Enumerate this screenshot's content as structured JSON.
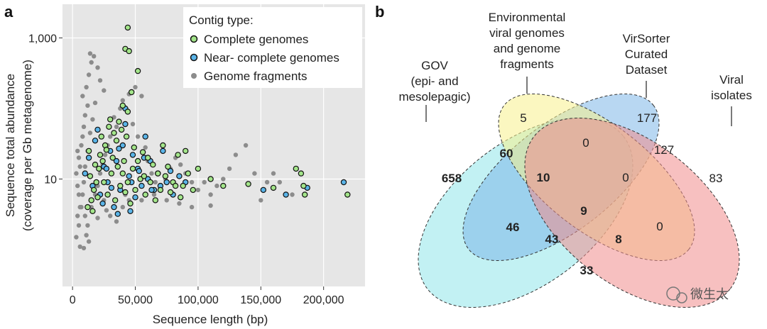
{
  "panels": {
    "a": {
      "letter": "a",
      "legend": {
        "title": "Contig type:",
        "items": [
          {
            "label": "Complete genomes",
            "color": "#a3e58a"
          },
          {
            "label": "Near- complete genomes",
            "color": "#5ab4e8"
          },
          {
            "label": "Genome fragments",
            "color": "#8c8c8c"
          }
        ]
      }
    },
    "b": {
      "letter": "b",
      "set_labels": [
        {
          "lines": [
            "GOV",
            "(epi- and",
            "mesolepagic)"
          ]
        },
        {
          "lines": [
            "Environmental",
            "viral genomes",
            "and genome",
            "fragments"
          ]
        },
        {
          "lines": [
            "VirSorter",
            "Curated",
            "Dataset"
          ]
        },
        {
          "lines": [
            "Viral",
            "isolates"
          ]
        }
      ]
    },
    "watermark": "微生太"
  },
  "chart_data": [
    {
      "type": "scatter",
      "xlabel": "Sequence length (bp)",
      "ylabel": [
        "Sequence total abundance",
        "(coverage per Gb metagenome)"
      ],
      "xlim": [
        -8000,
        233000
      ],
      "ylim": [
        0.3,
        3000
      ],
      "yscale": "log",
      "grid": true,
      "legend_position": "top-right",
      "x_ticks": [
        {
          "value": 0,
          "label": "0"
        },
        {
          "value": 50000,
          "label": "50,000"
        },
        {
          "value": 100000,
          "label": "100,000"
        },
        {
          "value": 150000,
          "label": "150,000"
        },
        {
          "value": 200000,
          "label": "200,000"
        }
      ],
      "y_ticks": [
        {
          "value": 10,
          "label": "10"
        },
        {
          "value": 1000,
          "label": "1,000"
        }
      ],
      "series": [
        {
          "name": "Genome fragments",
          "color": "#8c8c8c",
          "points": [
            [
              3000,
              1.5
            ],
            [
              5000,
              2.2
            ],
            [
              4000,
              3
            ],
            [
              6000,
              4
            ],
            [
              5000,
              6
            ],
            [
              4000,
              8
            ],
            [
              3000,
              12
            ],
            [
              6000,
              15
            ],
            [
              5000,
              20
            ],
            [
              4000,
              25
            ],
            [
              7000,
              30
            ],
            [
              8000,
              40
            ],
            [
              9000,
              55
            ],
            [
              10000,
              80
            ],
            [
              12000,
              110
            ],
            [
              8000,
              150
            ],
            [
              11000,
              200
            ],
            [
              13000,
              300
            ],
            [
              15000,
              450
            ],
            [
              14000,
              600
            ],
            [
              17000,
              550
            ],
            [
              20000,
              380
            ],
            [
              22000,
              250
            ],
            [
              25000,
              180
            ],
            [
              18000,
              120
            ],
            [
              16000,
              70
            ],
            [
              14000,
              45
            ],
            [
              12000,
              25
            ],
            [
              10000,
              15
            ],
            [
              9000,
              9
            ],
            [
              8000,
              6
            ],
            [
              7000,
              4
            ],
            [
              10000,
              3
            ],
            [
              12000,
              2.2
            ],
            [
              11000,
              1.6
            ],
            [
              13000,
              1.3
            ],
            [
              6000,
              1.1
            ],
            [
              9000,
              1.05
            ],
            [
              15000,
              4
            ],
            [
              18000,
              6
            ],
            [
              20000,
              8
            ],
            [
              22000,
              12
            ],
            [
              24000,
              16
            ],
            [
              26000,
              22
            ],
            [
              28000,
              30
            ],
            [
              30000,
              40
            ],
            [
              35000,
              55
            ],
            [
              33000,
              75
            ],
            [
              38000,
              100
            ],
            [
              40000,
              130
            ],
            [
              45000,
              160
            ],
            [
              50000,
              200
            ],
            [
              55000,
              150
            ],
            [
              48000,
              60
            ],
            [
              52000,
              40
            ],
            [
              58000,
              28
            ],
            [
              60000,
              18
            ],
            [
              63000,
              12
            ],
            [
              66000,
              9
            ],
            [
              70000,
              7
            ],
            [
              74000,
              10
            ],
            [
              78000,
              14
            ],
            [
              82000,
              20
            ],
            [
              86000,
              16
            ],
            [
              90000,
              12
            ],
            [
              95000,
              9
            ],
            [
              100000,
              7
            ],
            [
              105000,
              9
            ],
            [
              110000,
              6
            ],
            [
              115000,
              8
            ],
            [
              120000,
              10
            ],
            [
              125000,
              14
            ],
            [
              130000,
              22
            ],
            [
              138000,
              30
            ],
            [
              145000,
              12
            ],
            [
              155000,
              9
            ],
            [
              160000,
              12
            ],
            [
              165000,
              9
            ],
            [
              175000,
              6
            ],
            [
              40000,
              4
            ],
            [
              45000,
              5
            ],
            [
              30000,
              3
            ],
            [
              35000,
              2.5
            ],
            [
              25000,
              5
            ],
            [
              20000,
              2.8
            ],
            [
              27000,
              3.6
            ],
            [
              42000,
              6
            ],
            [
              55000,
              5
            ],
            [
              65000,
              6
            ],
            [
              75000,
              5
            ],
            [
              85000,
              4.5
            ],
            [
              95000,
              4
            ],
            [
              110000,
              4.2
            ],
            [
              150000,
              5
            ]
          ]
        },
        {
          "name": "Near- complete genomes",
          "color": "#5ab4e8",
          "points": [
            [
              10000,
              12
            ],
            [
              13000,
              20
            ],
            [
              16000,
              8
            ],
            [
              18000,
              35
            ],
            [
              20000,
              50
            ],
            [
              22000,
              6
            ],
            [
              25000,
              15
            ],
            [
              28000,
              9
            ],
            [
              30000,
              25
            ],
            [
              33000,
              4
            ],
            [
              35000,
              18
            ],
            [
              38000,
              7
            ],
            [
              40000,
              30
            ],
            [
              42000,
              60
            ],
            [
              45000,
              11
            ],
            [
              48000,
              22
            ],
            [
              50000,
              5.5
            ],
            [
              52000,
              14
            ],
            [
              55000,
              8
            ],
            [
              58000,
              40
            ],
            [
              60000,
              10
            ],
            [
              62000,
              18
            ],
            [
              65000,
              7
            ],
            [
              68000,
              12
            ],
            [
              72000,
              25
            ],
            [
              75000,
              9
            ],
            [
              80000,
              6
            ],
            [
              85000,
              11
            ],
            [
              24000,
              4.5
            ],
            [
              36000,
              3.2
            ],
            [
              46000,
              3.5
            ],
            [
              42000,
              100
            ],
            [
              27000,
              14
            ],
            [
              31000,
              7.5
            ],
            [
              37000,
              27
            ],
            [
              47000,
              9
            ],
            [
              53000,
              13
            ],
            [
              57000,
              20
            ],
            [
              63000,
              7
            ],
            [
              70000,
              8
            ],
            [
              78000,
              13
            ],
            [
              90000,
              9
            ],
            [
              152000,
              7
            ],
            [
              170000,
              6
            ],
            [
              187000,
              7.5
            ],
            [
              216000,
              9
            ]
          ]
        },
        {
          "name": "Complete genomes",
          "color": "#a3e58a",
          "points": [
            [
              44000,
              1400
            ],
            [
              42000,
              700
            ],
            [
              45000,
              650
            ],
            [
              52000,
              340
            ],
            [
              47000,
              170
            ],
            [
              44000,
              90
            ],
            [
              40000,
              110
            ],
            [
              37000,
              65
            ],
            [
              33000,
              45
            ],
            [
              30000,
              70
            ],
            [
              26000,
              30
            ],
            [
              24000,
              18
            ],
            [
              21000,
              14
            ],
            [
              19000,
              9
            ],
            [
              17000,
              7
            ],
            [
              15000,
              5
            ],
            [
              12000,
              4
            ],
            [
              14000,
              11
            ],
            [
              18000,
              16
            ],
            [
              22000,
              22
            ],
            [
              27000,
              26
            ],
            [
              32000,
              20
            ],
            [
              36000,
              15
            ],
            [
              40000,
              12
            ],
            [
              44000,
              9
            ],
            [
              48000,
              14
            ],
            [
              52000,
              18
            ],
            [
              56000,
              24
            ],
            [
              60000,
              20
            ],
            [
              64000,
              16
            ],
            [
              68000,
              12
            ],
            [
              72000,
              30
            ],
            [
              76000,
              15
            ],
            [
              80000,
              9
            ],
            [
              84000,
              22
            ],
            [
              88000,
              8
            ],
            [
              92000,
              12
            ],
            [
              96000,
              7
            ],
            [
              28000,
              6
            ],
            [
              34000,
              5
            ],
            [
              38000,
              8
            ],
            [
              42000,
              6.5
            ],
            [
              46000,
              4.5
            ],
            [
              50000,
              7
            ],
            [
              54000,
              10
            ],
            [
              58000,
              6
            ],
            [
              62000,
              9
            ],
            [
              66000,
              5
            ],
            [
              70000,
              7
            ],
            [
              74000,
              11
            ],
            [
              78000,
              6.5
            ],
            [
              82000,
              8
            ],
            [
              86000,
              5.5
            ],
            [
              90000,
              25
            ],
            [
              100000,
              14
            ],
            [
              110000,
              10
            ],
            [
              120000,
              8
            ],
            [
              140000,
              8.5
            ],
            [
              160000,
              7.5
            ],
            [
              178000,
              14
            ],
            [
              182000,
              12
            ],
            [
              184000,
              8
            ],
            [
              185000,
              6
            ],
            [
              219000,
              6
            ],
            [
              23000,
              40
            ],
            [
              29000,
              55
            ],
            [
              35000,
              35
            ],
            [
              39000,
              50
            ],
            [
              43000,
              40
            ],
            [
              31000,
              12
            ],
            [
              25000,
              9
            ],
            [
              20000,
              5.5
            ],
            [
              16000,
              3.5
            ],
            [
              13000,
              25
            ],
            [
              41000,
              18
            ],
            [
              49000,
              28
            ],
            [
              57000,
              11
            ]
          ]
        }
      ]
    },
    {
      "type": "venn",
      "sets": [
        "GOV (epi- and mesolepagic)",
        "Environmental viral genomes and genome fragments",
        "VirSorter Curated Dataset",
        "Viral isolates"
      ],
      "set_colors": [
        "#8fe6ea",
        "#7eb6e8",
        "#f8f08c",
        "#f08d8d"
      ],
      "regions": [
        {
          "sets": [
            "GOV"
          ],
          "value": 658,
          "bold": true
        },
        {
          "sets": [
            "Environmental"
          ],
          "value": 5,
          "bold": false
        },
        {
          "sets": [
            "VirSorter"
          ],
          "value": 177,
          "bold": false
        },
        {
          "sets": [
            "Viral isolates"
          ],
          "value": 83,
          "bold": false
        },
        {
          "sets": [
            "GOV",
            "Environmental"
          ],
          "value": 60,
          "bold": true
        },
        {
          "sets": [
            "Environmental",
            "VirSorter"
          ],
          "value": 0,
          "bold": false
        },
        {
          "sets": [
            "VirSorter",
            "Viral isolates"
          ],
          "value": 127,
          "bold": false
        },
        {
          "sets": [
            "GOV",
            "Environmental",
            "VirSorter"
          ],
          "value": 10,
          "bold": true
        },
        {
          "sets": [
            "Environmental",
            "VirSorter",
            "Viral isolates"
          ],
          "value": 0,
          "bold": false
        },
        {
          "sets": [
            "GOV",
            "Environmental",
            "VirSorter",
            "Viral isolates"
          ],
          "value": 9,
          "bold": true
        },
        {
          "sets": [
            "GOV",
            "VirSorter"
          ],
          "value": 46,
          "bold": true
        },
        {
          "sets": [
            "GOV",
            "VirSorter",
            "Viral isolates"
          ],
          "value": 43,
          "bold": true
        },
        {
          "sets": [
            "GOV",
            "Environmental",
            "Viral isolates"
          ],
          "value": 8,
          "bold": true
        },
        {
          "sets": [
            "Environmental",
            "Viral isolates"
          ],
          "value": 0,
          "bold": false
        },
        {
          "sets": [
            "GOV",
            "Viral isolates"
          ],
          "value": 33,
          "bold": true
        }
      ]
    }
  ]
}
